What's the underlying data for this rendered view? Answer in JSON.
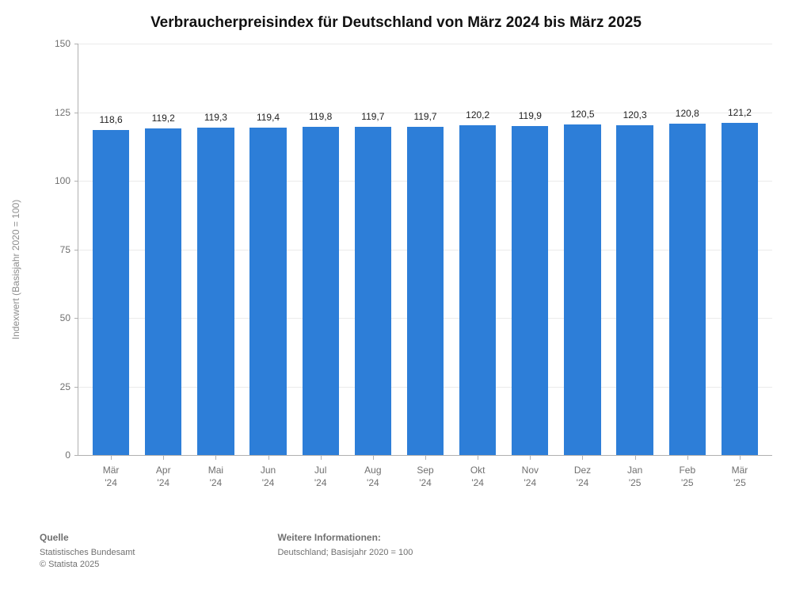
{
  "chart": {
    "type": "bar",
    "title": "Verbraucherpreisindex für Deutschland von März 2024 bis März 2025",
    "title_fontsize": 19,
    "title_color": "#111111",
    "ylabel": "Indexwert (Basisjahr 2020 = 100)",
    "ylabel_fontsize": 12,
    "ylabel_color": "#8d8d8d",
    "ylim": [
      0,
      150
    ],
    "ytick_step": 25,
    "yticks": [
      0,
      25,
      50,
      75,
      100,
      125,
      150
    ],
    "grid_color": "#ebebeb",
    "axis_color": "#b0b0b0",
    "tick_label_color": "#707070",
    "tick_label_fontsize": 12,
    "background_color": "#ffffff",
    "bar_color": "#2d7ed8",
    "bar_width": 0.7,
    "value_label_fontsize": 12,
    "value_label_color": "#222222",
    "categories": [
      "Mär\n'24",
      "Apr\n'24",
      "Mai\n'24",
      "Jun\n'24",
      "Jul\n'24",
      "Aug\n'24",
      "Sep\n'24",
      "Okt\n'24",
      "Nov\n'24",
      "Dez\n'24",
      "Jan\n'25",
      "Feb\n'25",
      "Mär\n'25"
    ],
    "values": [
      118.6,
      119.2,
      119.3,
      119.4,
      119.8,
      119.7,
      119.7,
      120.2,
      119.9,
      120.5,
      120.3,
      120.8,
      121.2
    ],
    "value_labels": [
      "118,6",
      "119,2",
      "119,3",
      "119,4",
      "119,8",
      "119,7",
      "119,7",
      "120,2",
      "119,9",
      "120,5",
      "120,3",
      "120,8",
      "121,2"
    ]
  },
  "footer": {
    "source_head": "Quelle",
    "source_line1": "Statistisches Bundesamt",
    "source_line2": "© Statista 2025",
    "info_head": "Weitere Informationen:",
    "info_line1": "Deutschland; Basisjahr 2020 = 100"
  }
}
